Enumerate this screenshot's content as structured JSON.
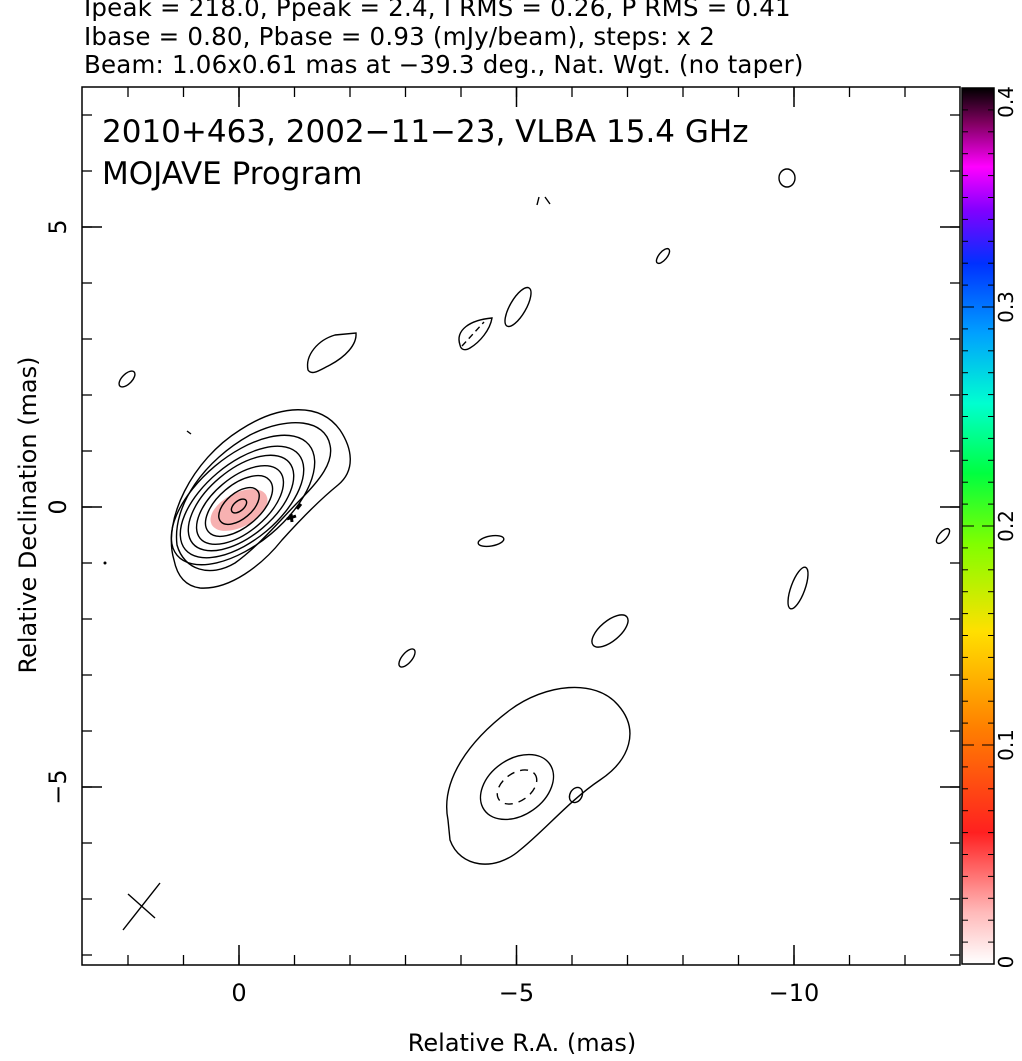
{
  "header": {
    "line1": "Ipeak = 218.0, Ppeak = 2.4, I RMS = 0.26, P RMS = 0.41",
    "line2": "Ibase = 0.80, Pbase = 0.93 (mJy/beam), steps: x 2",
    "line3": "Beam: 1.06x0.61 mas at −39.3 deg., Nat. Wgt. (no taper)"
  },
  "chart_data": {
    "type": "heatmap",
    "title": "2010+463, 2002−11−23, VLBA 15.4 GHz",
    "subtitle": "MOJAVE Program",
    "xlabel": "Relative R.A. (mas)",
    "ylabel": "Relative Declination (mas)",
    "xlim": [
      2.8,
      -13
    ],
    "ylim": [
      -8.2,
      7.5
    ],
    "x_ticks": [
      {
        "value": 0,
        "label": "0"
      },
      {
        "value": -5,
        "label": "−5"
      },
      {
        "value": -10,
        "label": "−10"
      }
    ],
    "y_ticks": [
      {
        "value": 5,
        "label": "5"
      },
      {
        "value": 0,
        "label": "0"
      },
      {
        "value": -5,
        "label": "−5"
      }
    ],
    "colorbar": {
      "range": [
        0,
        0.4
      ],
      "tick_labels": [
        {
          "value": 0,
          "label": "0"
        },
        {
          "value": 0.1,
          "label": "0.1"
        },
        {
          "value": 0.2,
          "label": "0.2"
        },
        {
          "value": 0.3,
          "label": "0.3"
        },
        {
          "value": 0.4,
          "label": "0.4"
        }
      ]
    },
    "components": [
      {
        "x": 0.0,
        "y": 0.0,
        "contour_levels": 9,
        "polarized_emission": true
      },
      {
        "x": -5.0,
        "y": -5.0,
        "contour_levels": 3
      }
    ],
    "beam": {
      "major_mas": 1.06,
      "minor_mas": 0.61,
      "pa_deg": -39.3,
      "x": -1.7,
      "y": -7.2
    }
  }
}
